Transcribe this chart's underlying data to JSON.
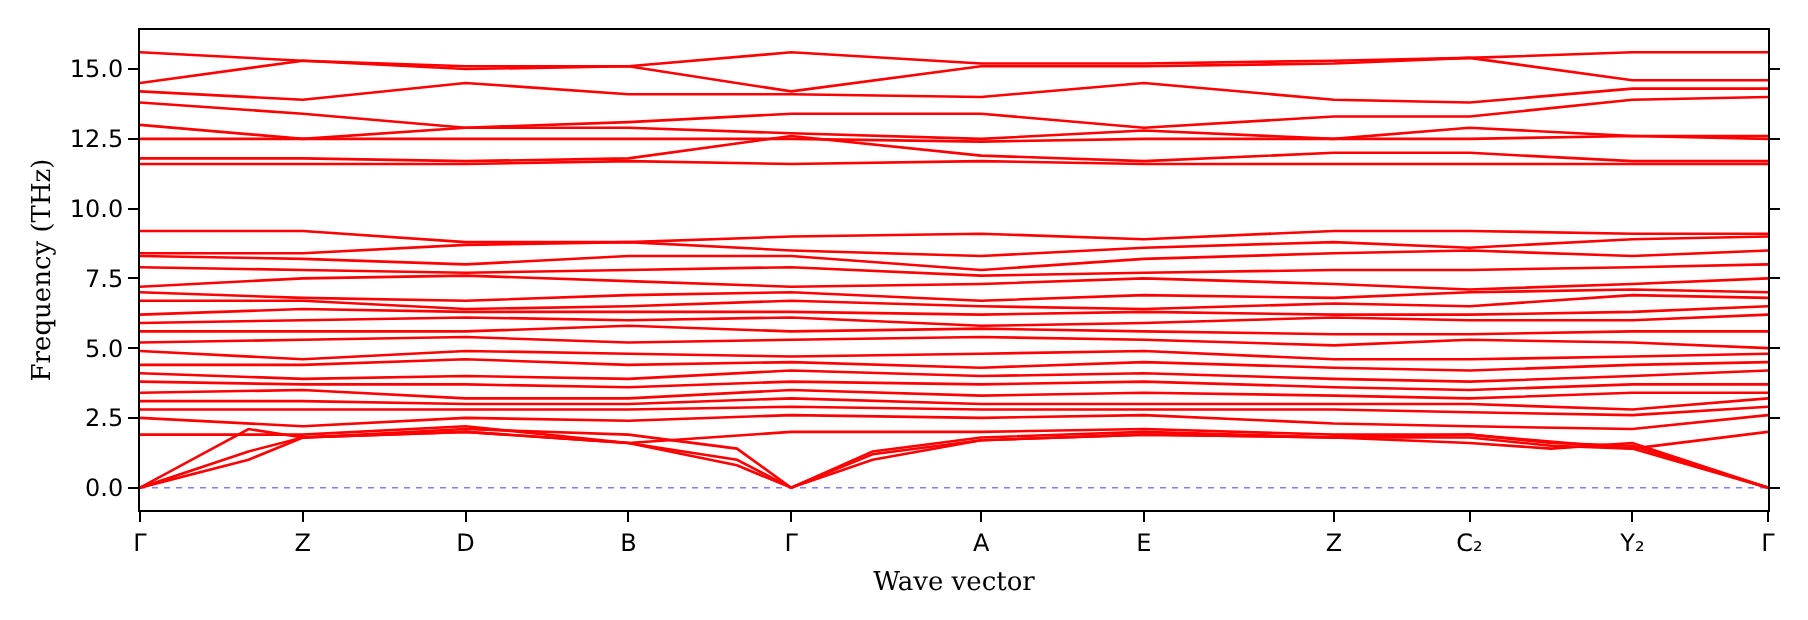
{
  "chart_data": {
    "type": "line",
    "xlabel": "Wave vector",
    "ylabel": "Frequency (THz)",
    "categories": [
      "Γ",
      null,
      null,
      null,
      null,
      null,
      "Z",
      null,
      null,
      null,
      null,
      null,
      "D",
      null,
      null,
      null,
      null,
      null,
      "B",
      null,
      null,
      null,
      null,
      null,
      "Γ",
      null,
      null,
      null,
      null,
      null,
      null,
      "A",
      null,
      null,
      null,
      null,
      null,
      "E",
      null,
      null,
      null,
      null,
      null,
      null,
      "Z",
      null,
      null,
      null,
      null,
      "C₂",
      null,
      null,
      null,
      null,
      null,
      "Y₂",
      null,
      null,
      null,
      null,
      "Γ"
    ],
    "ylim": [
      -0.8,
      16.4
    ],
    "yticks": [
      {
        "value": 0,
        "label": "0.0"
      },
      {
        "value": 2.5,
        "label": "2.5"
      },
      {
        "value": 5,
        "label": "5.0"
      },
      {
        "value": 7.5,
        "label": "7.5"
      },
      {
        "value": 10,
        "label": "10.0"
      },
      {
        "value": 12.5,
        "label": "12.5"
      },
      {
        "value": 15,
        "label": "15.0"
      }
    ],
    "grid": false,
    "marker": "none",
    "line_style": "solid",
    "ref_lines": [
      {
        "axis": "y",
        "value": 0,
        "color": "#8080ff",
        "line_style": "dotted"
      }
    ],
    "series": [
      {
        "color": "#ff0000",
        "values": [
          15.6,
          null,
          null,
          null,
          null,
          null,
          15.3,
          null,
          null,
          null,
          null,
          null,
          15.1,
          null,
          null,
          null,
          null,
          null,
          15.1,
          null,
          null,
          null,
          null,
          null,
          15.6,
          null,
          null,
          null,
          null,
          null,
          null,
          15.2,
          null,
          null,
          null,
          null,
          null,
          15.2,
          null,
          null,
          null,
          null,
          null,
          null,
          15.3,
          null,
          null,
          null,
          null,
          15.4,
          null,
          null,
          null,
          null,
          null,
          15.6,
          null,
          null,
          null,
          null,
          15.6
        ]
      },
      {
        "color": "#ff0000",
        "values": [
          14.5,
          null,
          null,
          null,
          null,
          null,
          15.3,
          null,
          null,
          null,
          null,
          null,
          15.0,
          null,
          null,
          null,
          null,
          null,
          15.1,
          null,
          null,
          null,
          null,
          null,
          14.2,
          null,
          null,
          null,
          null,
          null,
          null,
          15.1,
          null,
          null,
          null,
          null,
          null,
          15.1,
          null,
          null,
          null,
          null,
          null,
          null,
          15.2,
          null,
          null,
          null,
          null,
          15.4,
          null,
          null,
          null,
          null,
          null,
          14.6,
          null,
          null,
          null,
          null,
          14.6
        ]
      },
      {
        "color": "#ff0000",
        "values": [
          14.2,
          null,
          null,
          null,
          null,
          null,
          13.9,
          null,
          null,
          null,
          null,
          null,
          14.5,
          null,
          null,
          null,
          null,
          null,
          14.1,
          null,
          null,
          null,
          null,
          null,
          14.1,
          null,
          null,
          null,
          null,
          null,
          null,
          14.0,
          null,
          null,
          null,
          null,
          null,
          14.5,
          null,
          null,
          null,
          null,
          null,
          null,
          13.9,
          null,
          null,
          null,
          null,
          13.8,
          null,
          null,
          null,
          null,
          null,
          14.3,
          null,
          null,
          null,
          null,
          14.3
        ]
      },
      {
        "color": "#ff0000",
        "values": [
          13.8,
          null,
          null,
          null,
          null,
          null,
          13.4,
          null,
          null,
          null,
          null,
          null,
          12.9,
          null,
          null,
          null,
          null,
          null,
          13.1,
          null,
          null,
          null,
          null,
          null,
          13.4,
          null,
          null,
          null,
          null,
          null,
          null,
          13.4,
          null,
          null,
          null,
          null,
          null,
          12.9,
          null,
          null,
          null,
          null,
          null,
          null,
          13.3,
          null,
          null,
          null,
          null,
          13.3,
          null,
          null,
          null,
          null,
          null,
          13.9,
          null,
          null,
          null,
          null,
          14.0
        ]
      },
      {
        "color": "#ff0000",
        "values": [
          13.0,
          null,
          null,
          null,
          null,
          null,
          12.5,
          null,
          null,
          null,
          null,
          null,
          12.9,
          null,
          null,
          null,
          null,
          null,
          12.9,
          null,
          null,
          null,
          null,
          null,
          12.7,
          null,
          null,
          null,
          null,
          null,
          null,
          12.5,
          null,
          null,
          null,
          null,
          null,
          12.8,
          null,
          null,
          null,
          null,
          null,
          null,
          12.5,
          null,
          null,
          null,
          null,
          12.9,
          null,
          null,
          null,
          null,
          null,
          12.6,
          null,
          null,
          null,
          null,
          12.6
        ]
      },
      {
        "color": "#ff0000",
        "values": [
          12.5,
          null,
          null,
          null,
          null,
          null,
          12.5,
          null,
          null,
          null,
          null,
          null,
          12.5,
          null,
          null,
          null,
          null,
          null,
          12.5,
          null,
          null,
          null,
          null,
          null,
          12.5,
          null,
          null,
          null,
          null,
          null,
          null,
          12.4,
          null,
          null,
          null,
          null,
          null,
          12.5,
          null,
          null,
          null,
          null,
          null,
          null,
          12.5,
          null,
          null,
          null,
          null,
          12.5,
          null,
          null,
          null,
          null,
          null,
          12.6,
          null,
          null,
          null,
          null,
          12.5
        ]
      },
      {
        "color": "#ff0000",
        "values": [
          11.8,
          null,
          null,
          null,
          null,
          null,
          11.8,
          null,
          null,
          null,
          null,
          null,
          11.7,
          null,
          null,
          null,
          null,
          null,
          11.8,
          null,
          null,
          null,
          null,
          null,
          12.6,
          null,
          null,
          null,
          null,
          null,
          null,
          11.9,
          null,
          null,
          null,
          null,
          null,
          11.7,
          null,
          null,
          null,
          null,
          null,
          null,
          12.0,
          null,
          null,
          null,
          null,
          12.0,
          null,
          null,
          null,
          null,
          null,
          11.7,
          null,
          null,
          null,
          null,
          11.7
        ]
      },
      {
        "color": "#ff0000",
        "values": [
          11.6,
          null,
          null,
          null,
          null,
          null,
          11.6,
          null,
          null,
          null,
          null,
          null,
          11.6,
          null,
          null,
          null,
          null,
          null,
          11.7,
          null,
          null,
          null,
          null,
          null,
          11.6,
          null,
          null,
          null,
          null,
          null,
          null,
          11.7,
          null,
          null,
          null,
          null,
          null,
          11.6,
          null,
          null,
          null,
          null,
          null,
          null,
          11.6,
          null,
          null,
          null,
          null,
          11.6,
          null,
          null,
          null,
          null,
          null,
          11.6,
          null,
          null,
          null,
          null,
          11.6
        ]
      },
      {
        "color": "#ff0000",
        "values": [
          9.2,
          null,
          null,
          null,
          null,
          null,
          9.2,
          null,
          null,
          null,
          null,
          null,
          8.8,
          null,
          null,
          null,
          null,
          null,
          8.8,
          null,
          null,
          null,
          null,
          null,
          9.0,
          null,
          null,
          null,
          null,
          null,
          null,
          9.1,
          null,
          null,
          null,
          null,
          null,
          8.9,
          null,
          null,
          null,
          null,
          null,
          null,
          9.2,
          null,
          null,
          null,
          null,
          9.2,
          null,
          null,
          null,
          null,
          null,
          9.1,
          null,
          null,
          null,
          null,
          9.1
        ]
      },
      {
        "color": "#ff0000",
        "values": [
          8.4,
          null,
          null,
          null,
          null,
          null,
          8.4,
          null,
          null,
          null,
          null,
          null,
          8.7,
          null,
          null,
          null,
          null,
          null,
          8.8,
          null,
          null,
          null,
          null,
          null,
          8.5,
          null,
          null,
          null,
          null,
          null,
          null,
          8.3,
          null,
          null,
          null,
          null,
          null,
          8.6,
          null,
          null,
          null,
          null,
          null,
          null,
          8.8,
          null,
          null,
          null,
          null,
          8.6,
          null,
          null,
          null,
          null,
          null,
          8.9,
          null,
          null,
          null,
          null,
          9.0
        ]
      },
      {
        "color": "#ff0000",
        "values": [
          8.3,
          null,
          null,
          null,
          null,
          null,
          8.2,
          null,
          null,
          null,
          null,
          null,
          8.0,
          null,
          null,
          null,
          null,
          null,
          8.3,
          null,
          null,
          null,
          null,
          null,
          8.3,
          null,
          null,
          null,
          null,
          null,
          null,
          7.8,
          null,
          null,
          null,
          null,
          null,
          8.2,
          null,
          null,
          null,
          null,
          null,
          null,
          8.4,
          null,
          null,
          null,
          null,
          8.5,
          null,
          null,
          null,
          null,
          null,
          8.3,
          null,
          null,
          null,
          null,
          8.5
        ]
      },
      {
        "color": "#ff0000",
        "values": [
          7.9,
          null,
          null,
          null,
          null,
          null,
          7.8,
          null,
          null,
          null,
          null,
          null,
          7.7,
          null,
          null,
          null,
          null,
          null,
          7.8,
          null,
          null,
          null,
          null,
          null,
          7.9,
          null,
          null,
          null,
          null,
          null,
          null,
          7.6,
          null,
          null,
          null,
          null,
          null,
          7.7,
          null,
          null,
          null,
          null,
          null,
          null,
          7.8,
          null,
          null,
          null,
          null,
          7.8,
          null,
          null,
          null,
          null,
          null,
          7.9,
          null,
          null,
          null,
          null,
          8.0
        ]
      },
      {
        "color": "#ff0000",
        "values": [
          7.2,
          null,
          null,
          null,
          null,
          null,
          7.5,
          null,
          null,
          null,
          null,
          null,
          7.6,
          null,
          null,
          null,
          null,
          null,
          7.4,
          null,
          null,
          null,
          null,
          null,
          7.2,
          null,
          null,
          null,
          null,
          null,
          null,
          7.3,
          null,
          null,
          null,
          null,
          null,
          7.5,
          null,
          null,
          null,
          null,
          null,
          null,
          7.3,
          null,
          null,
          null,
          null,
          7.1,
          null,
          null,
          null,
          null,
          null,
          7.3,
          null,
          null,
          null,
          null,
          7.5
        ]
      },
      {
        "color": "#ff0000",
        "values": [
          7.0,
          null,
          null,
          null,
          null,
          null,
          6.8,
          null,
          null,
          null,
          null,
          null,
          6.7,
          null,
          null,
          null,
          null,
          null,
          6.9,
          null,
          null,
          null,
          null,
          null,
          7.0,
          null,
          null,
          null,
          null,
          null,
          null,
          6.7,
          null,
          null,
          null,
          null,
          null,
          6.9,
          null,
          null,
          null,
          null,
          null,
          null,
          6.8,
          null,
          null,
          null,
          null,
          7.0,
          null,
          null,
          null,
          null,
          null,
          7.1,
          null,
          null,
          null,
          null,
          7.0
        ]
      },
      {
        "color": "#ff0000",
        "values": [
          6.7,
          null,
          null,
          null,
          null,
          null,
          6.7,
          null,
          null,
          null,
          null,
          null,
          6.4,
          null,
          null,
          null,
          null,
          null,
          6.5,
          null,
          null,
          null,
          null,
          null,
          6.7,
          null,
          null,
          null,
          null,
          null,
          null,
          6.5,
          null,
          null,
          null,
          null,
          null,
          6.4,
          null,
          null,
          null,
          null,
          null,
          null,
          6.6,
          null,
          null,
          null,
          null,
          6.5,
          null,
          null,
          null,
          null,
          null,
          6.9,
          null,
          null,
          null,
          null,
          6.8
        ]
      },
      {
        "color": "#ff0000",
        "values": [
          6.2,
          null,
          null,
          null,
          null,
          null,
          6.4,
          null,
          null,
          null,
          null,
          null,
          6.3,
          null,
          null,
          null,
          null,
          null,
          6.3,
          null,
          null,
          null,
          null,
          null,
          6.3,
          null,
          null,
          null,
          null,
          null,
          null,
          6.2,
          null,
          null,
          null,
          null,
          null,
          6.3,
          null,
          null,
          null,
          null,
          null,
          null,
          6.2,
          null,
          null,
          null,
          null,
          6.2,
          null,
          null,
          null,
          null,
          null,
          6.3,
          null,
          null,
          null,
          null,
          6.5
        ]
      },
      {
        "color": "#ff0000",
        "values": [
          5.9,
          null,
          null,
          null,
          null,
          null,
          6.0,
          null,
          null,
          null,
          null,
          null,
          6.1,
          null,
          null,
          null,
          null,
          null,
          6.0,
          null,
          null,
          null,
          null,
          null,
          6.1,
          null,
          null,
          null,
          null,
          null,
          null,
          5.8,
          null,
          null,
          null,
          null,
          null,
          5.9,
          null,
          null,
          null,
          null,
          null,
          null,
          6.1,
          null,
          null,
          null,
          null,
          6.0,
          null,
          null,
          null,
          null,
          null,
          6.0,
          null,
          null,
          null,
          null,
          6.2
        ]
      },
      {
        "color": "#ff0000",
        "values": [
          5.6,
          null,
          null,
          null,
          null,
          null,
          5.6,
          null,
          null,
          null,
          null,
          null,
          5.6,
          null,
          null,
          null,
          null,
          null,
          5.8,
          null,
          null,
          null,
          null,
          null,
          5.6,
          null,
          null,
          null,
          null,
          null,
          null,
          5.7,
          null,
          null,
          null,
          null,
          null,
          5.6,
          null,
          null,
          null,
          null,
          null,
          null,
          5.5,
          null,
          null,
          null,
          null,
          5.5,
          null,
          null,
          null,
          null,
          null,
          5.6,
          null,
          null,
          null,
          null,
          5.6
        ]
      },
      {
        "color": "#ff0000",
        "values": [
          5.2,
          null,
          null,
          null,
          null,
          null,
          5.3,
          null,
          null,
          null,
          null,
          null,
          5.4,
          null,
          null,
          null,
          null,
          null,
          5.2,
          null,
          null,
          null,
          null,
          null,
          5.3,
          null,
          null,
          null,
          null,
          null,
          null,
          5.4,
          null,
          null,
          null,
          null,
          null,
          5.3,
          null,
          null,
          null,
          null,
          null,
          null,
          5.1,
          null,
          null,
          null,
          null,
          5.3,
          null,
          null,
          null,
          null,
          null,
          5.2,
          null,
          null,
          null,
          null,
          5.0
        ]
      },
      {
        "color": "#ff0000",
        "values": [
          4.9,
          null,
          null,
          null,
          null,
          null,
          4.6,
          null,
          null,
          null,
          null,
          null,
          4.9,
          null,
          null,
          null,
          null,
          null,
          4.8,
          null,
          null,
          null,
          null,
          null,
          4.7,
          null,
          null,
          null,
          null,
          null,
          null,
          4.8,
          null,
          null,
          null,
          null,
          null,
          4.9,
          null,
          null,
          null,
          null,
          null,
          null,
          4.6,
          null,
          null,
          null,
          null,
          4.6,
          null,
          null,
          null,
          null,
          null,
          4.7,
          null,
          null,
          null,
          null,
          4.8
        ]
      },
      {
        "color": "#ff0000",
        "values": [
          4.4,
          null,
          null,
          null,
          null,
          null,
          4.4,
          null,
          null,
          null,
          null,
          null,
          4.6,
          null,
          null,
          null,
          null,
          null,
          4.4,
          null,
          null,
          null,
          null,
          null,
          4.5,
          null,
          null,
          null,
          null,
          null,
          null,
          4.3,
          null,
          null,
          null,
          null,
          null,
          4.5,
          null,
          null,
          null,
          null,
          null,
          null,
          4.3,
          null,
          null,
          null,
          null,
          4.2,
          null,
          null,
          null,
          null,
          null,
          4.4,
          null,
          null,
          null,
          null,
          4.5
        ]
      },
      {
        "color": "#ff0000",
        "values": [
          4.1,
          null,
          null,
          null,
          null,
          null,
          3.9,
          null,
          null,
          null,
          null,
          null,
          4.0,
          null,
          null,
          null,
          null,
          null,
          3.9,
          null,
          null,
          null,
          null,
          null,
          4.2,
          null,
          null,
          null,
          null,
          null,
          null,
          4.0,
          null,
          null,
          null,
          null,
          null,
          4.1,
          null,
          null,
          null,
          null,
          null,
          null,
          3.9,
          null,
          null,
          null,
          null,
          3.8,
          null,
          null,
          null,
          null,
          null,
          4.0,
          null,
          null,
          null,
          null,
          4.2
        ]
      },
      {
        "color": "#ff0000",
        "values": [
          3.8,
          null,
          null,
          null,
          null,
          null,
          3.7,
          null,
          null,
          null,
          null,
          null,
          3.7,
          null,
          null,
          null,
          null,
          null,
          3.6,
          null,
          null,
          null,
          null,
          null,
          3.8,
          null,
          null,
          null,
          null,
          null,
          null,
          3.7,
          null,
          null,
          null,
          null,
          null,
          3.8,
          null,
          null,
          null,
          null,
          null,
          null,
          3.6,
          null,
          null,
          null,
          null,
          3.5,
          null,
          null,
          null,
          null,
          null,
          3.7,
          null,
          null,
          null,
          null,
          3.7
        ]
      },
      {
        "color": "#ff0000",
        "values": [
          3.4,
          null,
          null,
          null,
          null,
          null,
          3.5,
          null,
          null,
          null,
          null,
          null,
          3.2,
          null,
          null,
          null,
          null,
          null,
          3.2,
          null,
          null,
          null,
          null,
          null,
          3.5,
          null,
          null,
          null,
          null,
          null,
          null,
          3.3,
          null,
          null,
          null,
          null,
          null,
          3.4,
          null,
          null,
          null,
          null,
          null,
          null,
          3.3,
          null,
          null,
          null,
          null,
          3.2,
          null,
          null,
          null,
          null,
          null,
          3.4,
          null,
          null,
          null,
          null,
          3.4
        ]
      },
      {
        "color": "#ff0000",
        "values": [
          3.1,
          null,
          null,
          null,
          null,
          null,
          3.1,
          null,
          null,
          null,
          null,
          null,
          3.0,
          null,
          null,
          null,
          null,
          null,
          3.0,
          null,
          null,
          null,
          null,
          null,
          3.2,
          null,
          null,
          null,
          null,
          null,
          null,
          3.0,
          null,
          null,
          null,
          null,
          null,
          3.0,
          null,
          null,
          null,
          null,
          null,
          null,
          3.0,
          null,
          null,
          null,
          null,
          3.0,
          null,
          null,
          null,
          null,
          null,
          2.8,
          null,
          null,
          null,
          null,
          3.2
        ]
      },
      {
        "color": "#ff0000",
        "values": [
          2.8,
          null,
          null,
          null,
          null,
          null,
          2.8,
          null,
          null,
          null,
          null,
          null,
          2.8,
          null,
          null,
          null,
          null,
          null,
          2.8,
          null,
          null,
          null,
          null,
          null,
          2.9,
          null,
          null,
          null,
          null,
          null,
          null,
          2.8,
          null,
          null,
          null,
          null,
          null,
          2.8,
          null,
          null,
          null,
          null,
          null,
          null,
          2.8,
          null,
          null,
          null,
          null,
          2.7,
          null,
          null,
          null,
          null,
          null,
          2.6,
          null,
          null,
          null,
          null,
          2.9
        ]
      },
      {
        "color": "#ff0000",
        "values": [
          2.5,
          null,
          null,
          null,
          null,
          null,
          2.2,
          null,
          null,
          null,
          null,
          null,
          2.5,
          null,
          null,
          null,
          null,
          null,
          2.4,
          null,
          null,
          null,
          null,
          null,
          2.6,
          null,
          null,
          null,
          null,
          null,
          null,
          2.5,
          null,
          null,
          null,
          null,
          null,
          2.6,
          null,
          null,
          null,
          null,
          null,
          null,
          2.3,
          null,
          null,
          null,
          null,
          2.2,
          null,
          null,
          null,
          null,
          null,
          2.1,
          null,
          null,
          null,
          null,
          2.6
        ]
      },
      {
        "color": "#ff0000",
        "values": [
          1.9,
          null,
          null,
          null,
          null,
          null,
          1.9,
          null,
          null,
          null,
          null,
          null,
          2.2,
          null,
          null,
          null,
          null,
          null,
          1.6,
          null,
          null,
          null,
          null,
          null,
          2.0,
          null,
          null,
          null,
          null,
          null,
          null,
          2.0,
          null,
          null,
          null,
          null,
          null,
          2.1,
          null,
          null,
          null,
          null,
          null,
          null,
          1.9,
          null,
          null,
          null,
          null,
          1.9,
          null,
          null,
          null,
          null,
          null,
          1.4,
          null,
          null,
          null,
          null,
          2.0
        ]
      },
      {
        "color": "#ff0000",
        "values": [
          0,
          null,
          null,
          null,
          2.1,
          null,
          1.8,
          null,
          null,
          null,
          null,
          null,
          2.1,
          null,
          null,
          null,
          null,
          null,
          1.9,
          null,
          null,
          null,
          1.4,
          null,
          0,
          null,
          null,
          1.3,
          null,
          null,
          null,
          1.8,
          null,
          null,
          null,
          null,
          null,
          2.0,
          null,
          null,
          null,
          null,
          null,
          null,
          1.8,
          null,
          null,
          null,
          null,
          1.6,
          null,
          null,
          1.4,
          null,
          null,
          1.6,
          null,
          null,
          null,
          null,
          0
        ]
      },
      {
        "color": "#ff0000",
        "values": [
          0,
          null,
          null,
          null,
          1.3,
          null,
          1.8,
          null,
          null,
          null,
          null,
          null,
          2.0,
          null,
          null,
          null,
          null,
          null,
          1.6,
          null,
          null,
          null,
          1.0,
          null,
          0,
          null,
          null,
          1.2,
          null,
          null,
          null,
          1.7,
          null,
          null,
          null,
          null,
          null,
          1.9,
          null,
          null,
          null,
          null,
          null,
          null,
          1.8,
          null,
          null,
          null,
          null,
          1.9,
          null,
          null,
          1.6,
          null,
          null,
          1.5,
          null,
          null,
          null,
          null,
          0
        ]
      },
      {
        "color": "#ff0000",
        "values": [
          0,
          null,
          null,
          null,
          1.0,
          null,
          1.8,
          null,
          null,
          null,
          null,
          null,
          2.0,
          null,
          null,
          null,
          null,
          null,
          1.6,
          null,
          null,
          null,
          0.8,
          null,
          0,
          null,
          null,
          1.0,
          null,
          null,
          null,
          1.7,
          null,
          null,
          null,
          null,
          null,
          1.9,
          null,
          null,
          null,
          null,
          null,
          null,
          1.8,
          null,
          null,
          null,
          null,
          1.8,
          null,
          null,
          1.5,
          null,
          null,
          1.4,
          null,
          null,
          null,
          null,
          0
        ]
      }
    ]
  }
}
